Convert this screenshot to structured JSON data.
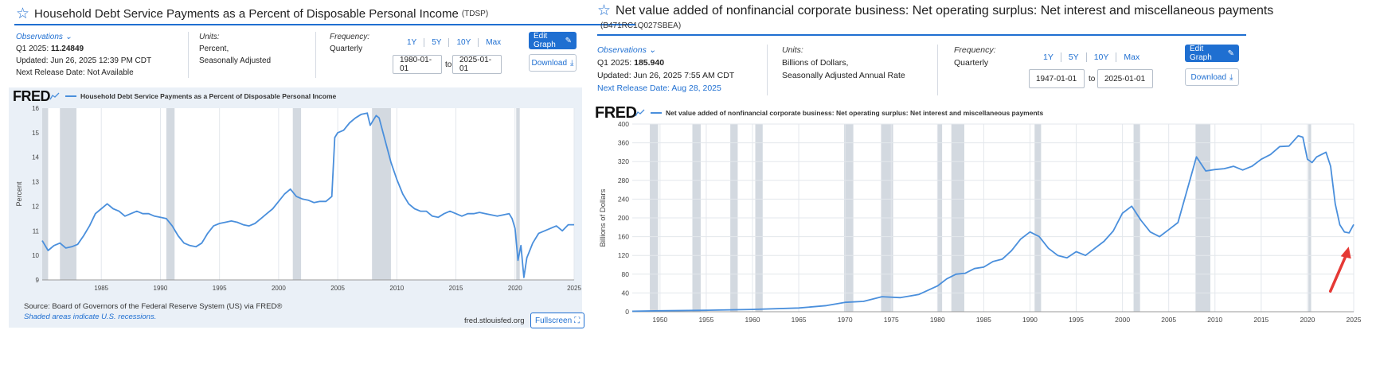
{
  "left": {
    "title": "Household Debt Service Payments as a Percent of Disposable Personal Income",
    "series_id": "(TDSP)",
    "observations_label": "Observations",
    "obs_period": "Q1 2025:",
    "obs_value": "11.24849",
    "updated": "Updated: Jun 26, 2025 12:39 PM CDT",
    "next_release": "Next Release Date: Not Available",
    "units_label": "Units:",
    "units_line1": "Percent,",
    "units_line2": "Seasonally Adjusted",
    "frequency_label": "Frequency:",
    "frequency_value": "Quarterly",
    "range_links": [
      "1Y",
      "5Y",
      "10Y",
      "Max"
    ],
    "date_from": "1980-01-01",
    "to_label": "to",
    "date_to": "2025-01-01",
    "edit_graph": "Edit Graph",
    "download": "Download",
    "fred_logo": "FRED",
    "legend_text": "Household Debt Service Payments as a Percent of Disposable Personal Income",
    "source": "Source: Board of Governors of the Federal Reserve System (US) via FRED®",
    "shaded": "Shaded areas indicate U.S. recessions.",
    "site": "fred.stlouisfed.org",
    "fullscreen": "Fullscreen"
  },
  "right": {
    "title": "Net value added of nonfinancial corporate business: Net operating surplus: Net interest and miscellaneous payments",
    "series_id": "(B471RC1Q027SBEA)",
    "observations_label": "Observations",
    "obs_period": "Q1 2025:",
    "obs_value": "185.940",
    "updated": "Updated: Jun 26, 2025 7:55 AM CDT",
    "next_release": "Next Release Date: Aug 28, 2025",
    "units_label": "Units:",
    "units_line1": "Billions of Dollars,",
    "units_line2": "Seasonally Adjusted Annual Rate",
    "frequency_label": "Frequency:",
    "frequency_value": "Quarterly",
    "range_links": [
      "1Y",
      "5Y",
      "10Y",
      "Max"
    ],
    "date_from": "1947-01-01",
    "to_label": "to",
    "date_to": "2025-01-01",
    "edit_graph": "Edit Graph",
    "download": "Download",
    "fred_logo": "FRED",
    "legend_text": "Net value added of nonfinancial corporate business: Net operating surplus: Net interest and miscellaneous payments"
  },
  "colors": {
    "accent": "#1f6fd1",
    "line": "#4a8fdc",
    "recession": "#d3d9e0",
    "annotation_arrow": "#e53935"
  },
  "chart_data": [
    {
      "type": "line",
      "title": "Household Debt Service Payments as a Percent of Disposable Personal Income",
      "ylabel": "Percent",
      "xlim": [
        1980,
        2025
      ],
      "ylim": [
        9,
        16
      ],
      "yticks": [
        9,
        10,
        11,
        12,
        13,
        14,
        15,
        16
      ],
      "xticks": [
        1985,
        1990,
        1995,
        2000,
        2005,
        2010,
        2015,
        2020,
        2025
      ],
      "grid": "vertical",
      "recessions": [
        [
          1980.0,
          1980.5
        ],
        [
          1981.5,
          1982.9
        ],
        [
          1990.5,
          1991.2
        ],
        [
          2001.2,
          2001.9
        ],
        [
          2007.9,
          2009.5
        ],
        [
          2020.1,
          2020.4
        ]
      ],
      "series": [
        {
          "x": [
            1980,
            1980.5,
            1981,
            1981.5,
            1982,
            1982.5,
            1983,
            1983.5,
            1984,
            1984.5,
            1985,
            1985.5,
            1986,
            1986.5,
            1987,
            1987.5,
            1988,
            1988.5,
            1989,
            1989.5,
            1990,
            1990.5,
            1991,
            1991.5,
            1992,
            1992.5,
            1993,
            1993.5,
            1994,
            1994.5,
            1995,
            1995.5,
            1996,
            1996.5,
            1997,
            1997.5,
            1998,
            1998.5,
            1999,
            1999.5,
            2000,
            2000.5,
            2001,
            2001.5,
            2002,
            2002.5,
            2003,
            2003.5,
            2004,
            2004.5,
            2004.75,
            2005,
            2005.5,
            2006,
            2006.5,
            2007,
            2007.5,
            2007.75,
            2008,
            2008.25,
            2008.5,
            2009,
            2009.5,
            2010,
            2010.5,
            2011,
            2011.5,
            2012,
            2012.5,
            2013,
            2013.5,
            2014,
            2014.5,
            2015,
            2015.5,
            2016,
            2016.5,
            2017,
            2017.5,
            2018,
            2018.5,
            2019,
            2019.5,
            2019.75,
            2020,
            2020.25,
            2020.5,
            2020.75,
            2021,
            2021.25,
            2021.5,
            2022,
            2022.5,
            2023,
            2023.5,
            2024,
            2024.5,
            2025
          ],
          "y": [
            10.6,
            10.2,
            10.4,
            10.5,
            10.3,
            10.35,
            10.45,
            10.8,
            11.2,
            11.7,
            11.9,
            12.1,
            11.9,
            11.8,
            11.6,
            11.7,
            11.8,
            11.7,
            11.7,
            11.6,
            11.55,
            11.5,
            11.2,
            10.8,
            10.5,
            10.4,
            10.35,
            10.5,
            10.9,
            11.2,
            11.3,
            11.35,
            11.4,
            11.35,
            11.25,
            11.2,
            11.3,
            11.5,
            11.7,
            11.9,
            12.2,
            12.5,
            12.7,
            12.4,
            12.3,
            12.25,
            12.15,
            12.2,
            12.2,
            12.4,
            14.8,
            15.0,
            15.1,
            15.4,
            15.6,
            15.75,
            15.8,
            15.3,
            15.5,
            15.7,
            15.6,
            14.7,
            13.8,
            13.1,
            12.5,
            12.1,
            11.9,
            11.8,
            11.8,
            11.6,
            11.55,
            11.7,
            11.8,
            11.7,
            11.6,
            11.7,
            11.7,
            11.75,
            11.7,
            11.65,
            11.6,
            11.65,
            11.7,
            11.5,
            11.1,
            9.8,
            10.4,
            9.1,
            9.9,
            10.2,
            10.5,
            10.9,
            11.0,
            11.1,
            11.2,
            11.0,
            11.25,
            11.25
          ]
        }
      ]
    },
    {
      "type": "line",
      "title": "Net value added of nonfinancial corporate business: Net operating surplus: Net interest and miscellaneous payments",
      "ylabel": "Billions of Dollars",
      "xlim": [
        1947,
        2025
      ],
      "ylim": [
        0,
        400
      ],
      "yticks": [
        0,
        40,
        80,
        120,
        160,
        200,
        240,
        280,
        320,
        360,
        400
      ],
      "xticks": [
        1950,
        1955,
        1960,
        1965,
        1970,
        1975,
        1980,
        1985,
        1990,
        1995,
        2000,
        2005,
        2010,
        2015,
        2020,
        2025
      ],
      "grid": "both",
      "annotation": "red arrow pointing to latest value",
      "recessions": [
        [
          1948.9,
          1949.8
        ],
        [
          1953.5,
          1954.4
        ],
        [
          1957.6,
          1958.4
        ],
        [
          1960.3,
          1961.1
        ],
        [
          1969.9,
          1970.9
        ],
        [
          1973.9,
          1975.2
        ],
        [
          1980.0,
          1980.5
        ],
        [
          1981.5,
          1982.9
        ],
        [
          1990.5,
          1991.2
        ],
        [
          2001.2,
          2001.9
        ],
        [
          2007.9,
          2009.5
        ],
        [
          2020.1,
          2020.4
        ]
      ],
      "series": [
        {
          "x": [
            1947,
            1950,
            1955,
            1960,
            1965,
            1968,
            1970,
            1972,
            1974,
            1976,
            1978,
            1980,
            1981,
            1982,
            1983,
            1984,
            1985,
            1986,
            1987,
            1988,
            1989,
            1990,
            1991,
            1992,
            1993,
            1994,
            1995,
            1996,
            1997,
            1998,
            1999,
            2000,
            2001,
            2002,
            2003,
            2004,
            2005,
            2006,
            2007,
            2008,
            2009,
            2010,
            2011,
            2012,
            2013,
            2014,
            2015,
            2016,
            2017,
            2018,
            2019,
            2019.5,
            2020,
            2020.5,
            2021,
            2022,
            2022.5,
            2023,
            2023.5,
            2024,
            2024.5,
            2025
          ],
          "y": [
            1,
            2,
            3,
            5,
            8,
            13,
            20,
            22,
            32,
            30,
            37,
            55,
            70,
            80,
            82,
            92,
            95,
            107,
            112,
            130,
            155,
            170,
            160,
            135,
            120,
            115,
            128,
            120,
            135,
            150,
            172,
            210,
            225,
            195,
            170,
            160,
            175,
            190,
            260,
            330,
            300,
            303,
            305,
            310,
            302,
            310,
            325,
            335,
            352,
            353,
            375,
            372,
            325,
            318,
            330,
            340,
            310,
            230,
            185,
            170,
            168,
            186
          ]
        }
      ]
    }
  ]
}
